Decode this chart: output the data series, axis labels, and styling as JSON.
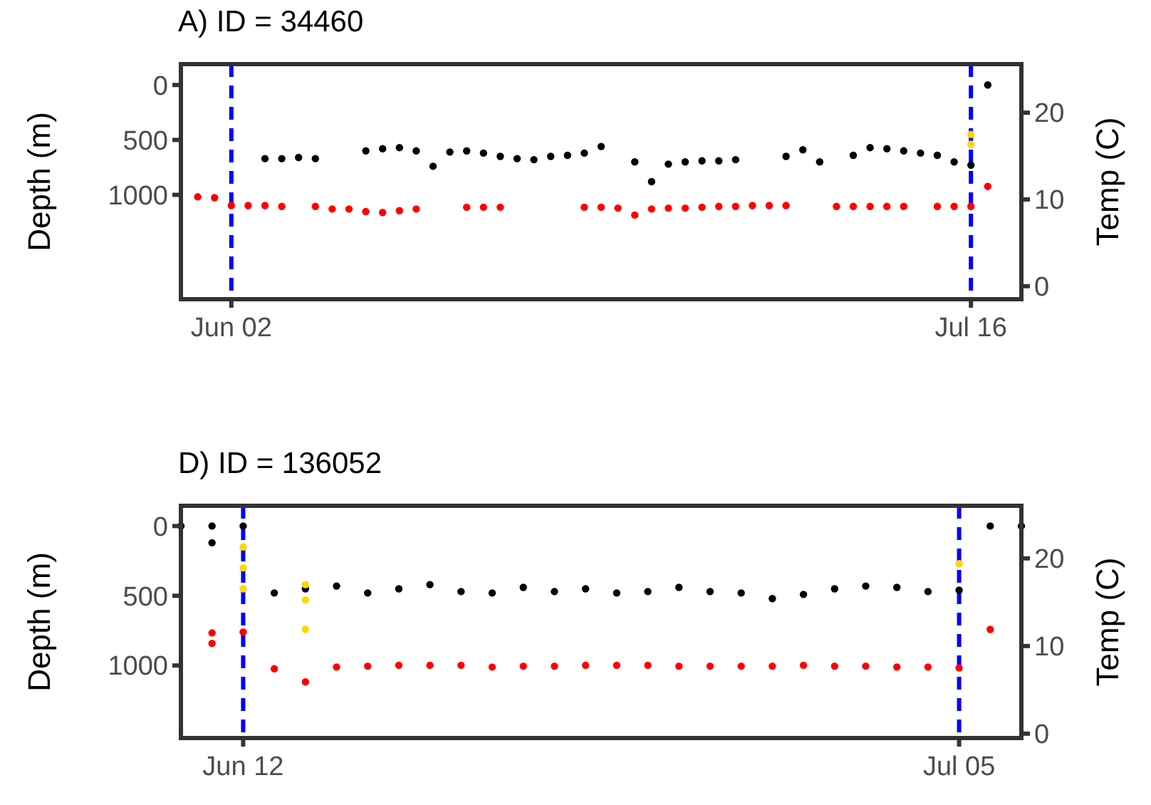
{
  "chart_data": [
    {
      "type": "scatter",
      "title": "A) ID = 34460",
      "ylabel": "Depth (m)",
      "y2label": "Temp (C)",
      "marker": "circle",
      "xlim": [
        "--05-30",
        "--07-19"
      ],
      "xticks": [
        {
          "value": "--06-02",
          "label": "Jun 02"
        },
        {
          "value": "--07-16",
          "label": "Jul 16"
        }
      ],
      "ylim": [
        1950,
        -190
      ],
      "yticks": [
        0,
        500,
        1000
      ],
      "y2lim": [
        -1.5,
        25.6
      ],
      "y2ticks": [
        0,
        10,
        20
      ],
      "ref_lines": [
        {
          "axis": "x",
          "value": "--06-02",
          "color": "#0000ff",
          "line_style": "dashed"
        },
        {
          "axis": "x",
          "value": "--07-16",
          "color": "#0000ff",
          "line_style": "dashed"
        }
      ],
      "series": [
        {
          "color": "#000000",
          "x": [
            "--06-04",
            "--06-05",
            "--06-06",
            "--06-07",
            "--06-10",
            "--06-11",
            "--06-12",
            "--06-13",
            "--06-14",
            "--06-15",
            "--06-16",
            "--06-17",
            "--06-18",
            "--06-19",
            "--06-20",
            "--06-21",
            "--06-22",
            "--06-23",
            "--06-24",
            "--06-26",
            "--06-27",
            "--06-28",
            "--06-29",
            "--06-30",
            "--07-01",
            "--07-02",
            "--07-05",
            "--07-06",
            "--07-07",
            "--07-09",
            "--07-10",
            "--07-11",
            "--07-12",
            "--07-13",
            "--07-14",
            "--07-15",
            "--07-16",
            "--07-17"
          ],
          "values": [
            670,
            670,
            660,
            670,
            600,
            580,
            570,
            600,
            740,
            610,
            600,
            620,
            650,
            670,
            680,
            650,
            640,
            620,
            560,
            700,
            880,
            720,
            700,
            690,
            690,
            680,
            650,
            590,
            700,
            640,
            570,
            580,
            600,
            620,
            640,
            700,
            730,
            0
          ]
        },
        {
          "color": "#ffd700",
          "x": [
            "--07-16",
            "--07-16"
          ],
          "values": [
            450,
            540
          ]
        },
        {
          "color": "#ff0000",
          "axis": "y2",
          "x": [
            "--05-31",
            "--06-01",
            "--06-02",
            "--06-03",
            "--06-04",
            "--06-05",
            "--06-07",
            "--06-08",
            "--06-09",
            "--06-10",
            "--06-11",
            "--06-12",
            "--06-13",
            "--06-16",
            "--06-17",
            "--06-18",
            "--06-23",
            "--06-24",
            "--06-25",
            "--06-26",
            "--06-27",
            "--06-28",
            "--06-29",
            "--06-30",
            "--07-01",
            "--07-02",
            "--07-03",
            "--07-04",
            "--07-05",
            "--07-08",
            "--07-09",
            "--07-10",
            "--07-11",
            "--07-12",
            "--07-14",
            "--07-15",
            "--07-16",
            "--07-17"
          ],
          "values": [
            10.3,
            10.2,
            9.3,
            9.3,
            9.3,
            9.2,
            9.2,
            8.9,
            8.9,
            8.6,
            8.5,
            8.7,
            8.9,
            9.1,
            9.1,
            9.1,
            9.1,
            9.1,
            9.0,
            8.2,
            8.9,
            9.0,
            9.0,
            9.1,
            9.2,
            9.2,
            9.3,
            9.3,
            9.3,
            9.2,
            9.2,
            9.2,
            9.2,
            9.2,
            9.2,
            9.2,
            9.2,
            11.5
          ]
        }
      ]
    },
    {
      "type": "scatter",
      "title": "D) ID = 136052",
      "ylabel": "Depth (m)",
      "y2label": "Temp (C)",
      "marker": "circle",
      "xlim": [
        "--06-10",
        "--07-07"
      ],
      "xticks": [
        {
          "value": "--06-12",
          "label": "Jun 12"
        },
        {
          "value": "--07-05",
          "label": "Jul 05"
        }
      ],
      "ylim": [
        1520,
        -145
      ],
      "yticks": [
        0,
        500,
        1000
      ],
      "y2lim": [
        -0.5,
        26
      ],
      "y2ticks": [
        0,
        10,
        20
      ],
      "ref_lines": [
        {
          "axis": "x",
          "value": "--06-12",
          "color": "#0000ff",
          "line_style": "dashed"
        },
        {
          "axis": "x",
          "value": "--07-05",
          "color": "#0000ff",
          "line_style": "dashed"
        }
      ],
      "series": [
        {
          "color": "#000000",
          "x": [
            "--06-10",
            "--06-11",
            "--06-11",
            "--06-12",
            "--06-13",
            "--06-14",
            "--06-15",
            "--06-16",
            "--06-17",
            "--06-18",
            "--06-19",
            "--06-20",
            "--06-21",
            "--06-22",
            "--06-23",
            "--06-24",
            "--06-25",
            "--06-26",
            "--06-27",
            "--06-28",
            "--06-29",
            "--06-30",
            "--07-01",
            "--07-02",
            "--07-03",
            "--07-04",
            "--07-05",
            "--07-06",
            "--07-07"
          ],
          "values": [
            0,
            0,
            120,
            0,
            480,
            450,
            430,
            480,
            450,
            420,
            470,
            480,
            440,
            470,
            450,
            480,
            470,
            440,
            470,
            480,
            520,
            490,
            450,
            430,
            440,
            470,
            460,
            0,
            0
          ]
        },
        {
          "color": "#ffd700",
          "x": [
            "--06-12",
            "--06-12",
            "--06-12",
            "--06-14",
            "--06-14",
            "--06-14",
            "--07-05"
          ],
          "values": [
            150,
            300,
            450,
            420,
            530,
            740,
            270
          ]
        },
        {
          "color": "#ff0000",
          "axis": "y2",
          "x": [
            "--06-11",
            "--06-11",
            "--06-12",
            "--06-13",
            "--06-14",
            "--06-15",
            "--06-16",
            "--06-17",
            "--06-18",
            "--06-19",
            "--06-20",
            "--06-21",
            "--06-22",
            "--06-23",
            "--06-24",
            "--06-25",
            "--06-26",
            "--06-27",
            "--06-28",
            "--06-29",
            "--06-30",
            "--07-01",
            "--07-02",
            "--07-03",
            "--07-04",
            "--07-05",
            "--07-06"
          ],
          "values": [
            11.5,
            10.3,
            11.6,
            7.4,
            5.9,
            7.6,
            7.7,
            7.8,
            7.8,
            7.8,
            7.6,
            7.7,
            7.7,
            7.8,
            7.8,
            7.8,
            7.7,
            7.7,
            7.7,
            7.7,
            7.8,
            7.7,
            7.7,
            7.6,
            7.6,
            7.5,
            11.9
          ]
        }
      ]
    }
  ]
}
